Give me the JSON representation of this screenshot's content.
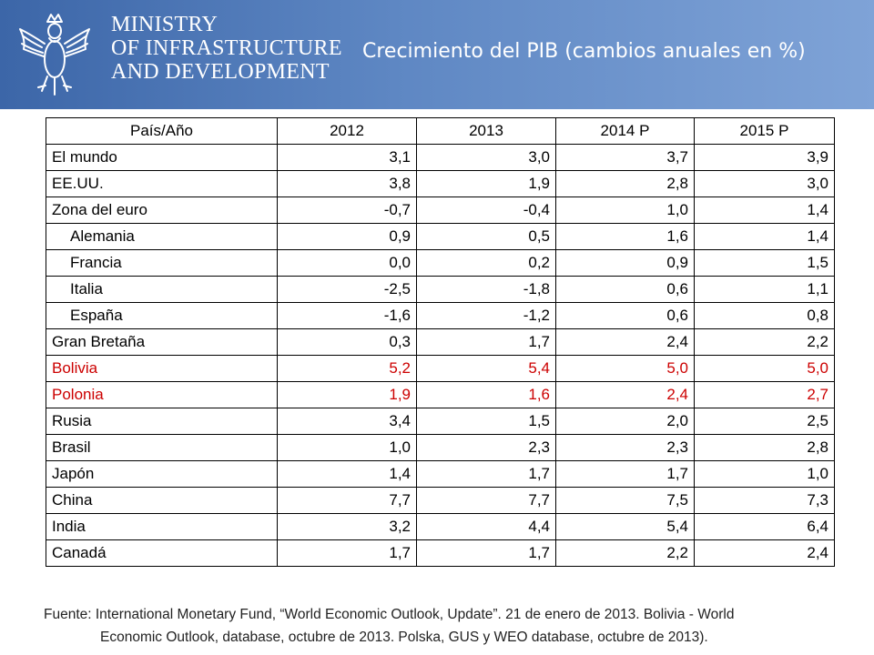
{
  "header": {
    "ministry_lines": [
      "MINISTRY",
      "OF INFRASTRUCTURE",
      "AND DEVELOPMENT"
    ],
    "title": "Crecimiento del PIB  (cambios anuales en %)",
    "logo_icon": "eagle-emblem-icon",
    "background_color": "#5e87c3"
  },
  "table": {
    "headers": [
      "País/Año",
      "2012",
      "2013",
      "2014 P",
      "2015 P"
    ],
    "rows": [
      {
        "country": "El mundo",
        "values": [
          "3,1",
          "3,0",
          "3,7",
          "3,9"
        ]
      },
      {
        "country": "EE.UU.",
        "values": [
          "3,8",
          "1,9",
          "2,8",
          "3,0"
        ]
      },
      {
        "country": "Zona del euro",
        "values": [
          "-0,7",
          "-0,4",
          "1,0",
          "1,4"
        ]
      },
      {
        "country": "Alemania",
        "values": [
          "0,9",
          "0,5",
          "1,6",
          "1,4"
        ]
      },
      {
        "country": "Francia",
        "values": [
          "0,0",
          "0,2",
          "0,9",
          "1,5"
        ]
      },
      {
        "country": "Italia",
        "values": [
          "-2,5",
          "-1,8",
          "0,6",
          "1,1"
        ]
      },
      {
        "country": "España",
        "values": [
          "-1,6",
          "-1,2",
          "0,6",
          "0,8"
        ]
      },
      {
        "country": "Gran Bretaña",
        "values": [
          "0,3",
          "1,7",
          "2,4",
          "2,2"
        ]
      },
      {
        "country": "Bolivia",
        "values": [
          "5,2",
          "5,4",
          "5,0",
          "5,0"
        ]
      },
      {
        "country": "Polonia",
        "values": [
          "1,9",
          "1,6",
          "2,4",
          "2,7"
        ]
      },
      {
        "country": "Rusia",
        "values": [
          "3,4",
          "1,5",
          "2,0",
          "2,5"
        ]
      },
      {
        "country": "Brasil",
        "values": [
          "1,0",
          "2,3",
          "2,3",
          "2,8"
        ]
      },
      {
        "country": "Japón",
        "values": [
          "1,4",
          "1,7",
          "1,7",
          "1,0"
        ]
      },
      {
        "country": "China",
        "values": [
          "7,7",
          "7,7",
          "7,5",
          "7,3"
        ]
      },
      {
        "country": "India",
        "values": [
          "3,2",
          "4,4",
          "5,4",
          "6,4"
        ]
      },
      {
        "country": "Canadá",
        "values": [
          "1,7",
          "1,7",
          "2,2",
          "2,4"
        ]
      }
    ],
    "highlight_color": "#cc0000"
  },
  "source": {
    "line1": "Fuente: International Monetary Fund, “World Economic Outlook, Update”. 21 de enero de 2013. Bolivia - World",
    "line2": "Economic Outlook, database, octubre de 2013. Polska, GUS y WEO database, octubre de  2013)."
  }
}
